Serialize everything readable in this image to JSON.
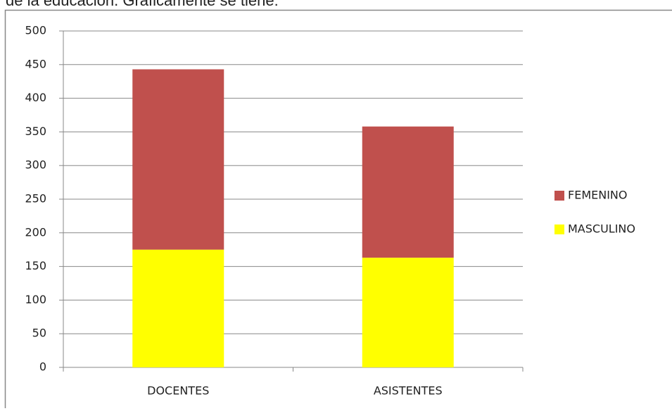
{
  "caption": "de la educación. Gráficamente se tiene:",
  "chart_data": {
    "type": "stacked_bar",
    "categories": [
      "DOCENTES",
      "ASISTENTES"
    ],
    "series": [
      {
        "name": "MASCULINO",
        "color": "#ffff00",
        "values": [
          175,
          163
        ]
      },
      {
        "name": "FEMENINO",
        "color": "#c0504d",
        "values": [
          268,
          195
        ]
      }
    ],
    "ylim": [
      0,
      500
    ],
    "yticks": [
      0,
      50,
      100,
      150,
      200,
      250,
      300,
      350,
      400,
      450,
      500
    ],
    "grid": true,
    "legend": "right"
  }
}
